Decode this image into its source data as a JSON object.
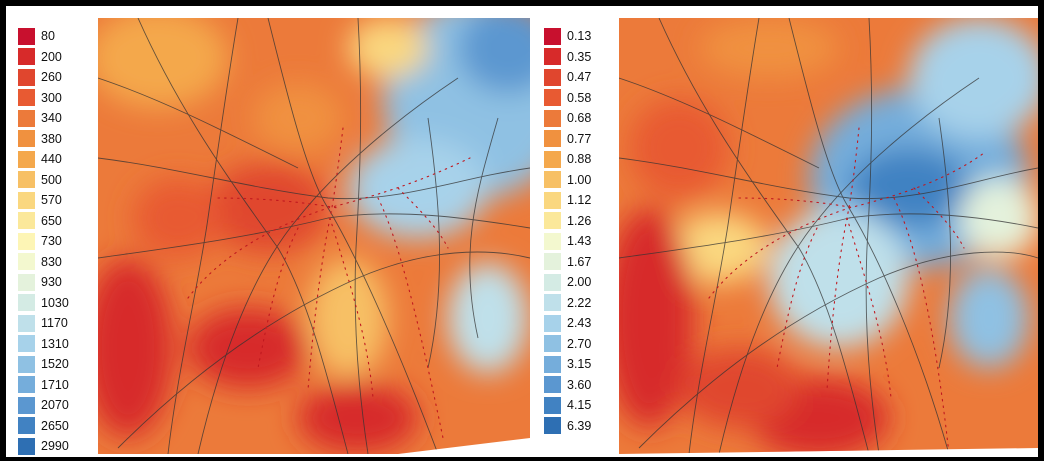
{
  "figure": {
    "panels": [
      {
        "legend": [
          "80",
          "200",
          "260",
          "300",
          "340",
          "380",
          "440",
          "500",
          "570",
          "650",
          "730",
          "830",
          "930",
          "1030",
          "1170",
          "1310",
          "1520",
          "1710",
          "2070",
          "2650",
          "2990"
        ]
      },
      {
        "legend": [
          "0.13",
          "0.35",
          "0.47",
          "0.58",
          "0.68",
          "0.77",
          "0.88",
          "1.00",
          "1.12",
          "1.26",
          "1.43",
          "1.67",
          "2.00",
          "2.22",
          "2.43",
          "2.70",
          "3.15",
          "3.60",
          "4.15",
          "6.39"
        ]
      }
    ]
  },
  "colors": {
    "scale": [
      "#c8102e",
      "#d72a2a",
      "#e0462e",
      "#e85a32",
      "#ec7a3a",
      "#f0913f",
      "#f4a84c",
      "#f7c065",
      "#fad77f",
      "#fbe89a",
      "#fdf5b5",
      "#f3f8cf",
      "#e4f2dc",
      "#d4ebe4",
      "#bfe0ea",
      "#a7d2ea",
      "#8fc1e3",
      "#75addb",
      "#5b97d0",
      "#4182c2",
      "#2e6fb3"
    ],
    "rail_line": "#c0181f",
    "road": "#333333"
  }
}
